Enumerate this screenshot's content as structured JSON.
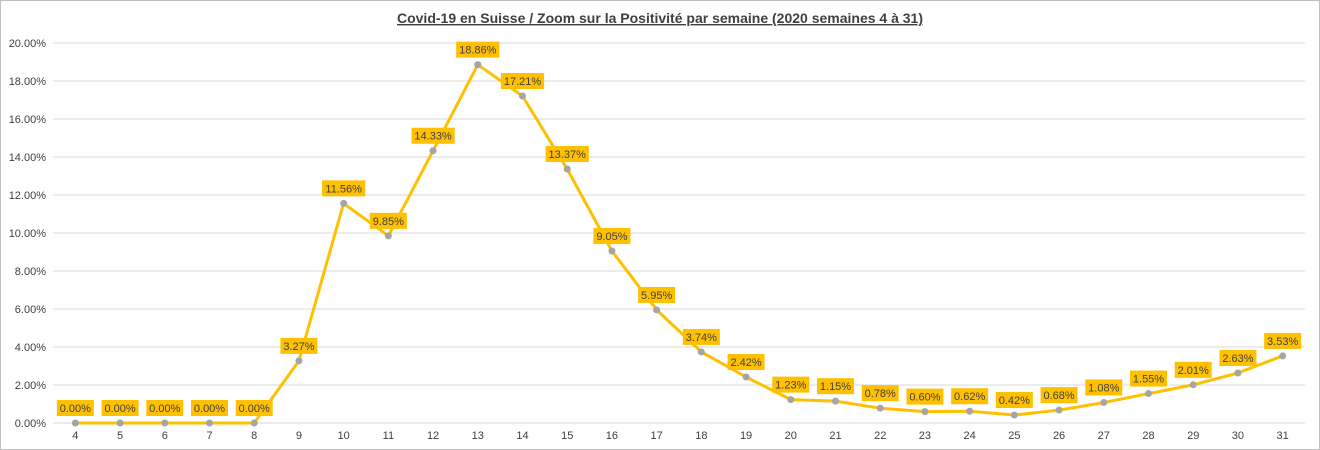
{
  "chart_data": {
    "type": "line",
    "title": "Covid-19 en Suisse / Zoom  sur la Positivité par semaine (2020 semaines 4 à 31)",
    "xlabel": "",
    "ylabel": "",
    "categories": [
      "4",
      "5",
      "6",
      "7",
      "8",
      "9",
      "10",
      "11",
      "12",
      "13",
      "14",
      "15",
      "16",
      "17",
      "18",
      "19",
      "20",
      "21",
      "22",
      "23",
      "24",
      "25",
      "26",
      "27",
      "28",
      "29",
      "30",
      "31"
    ],
    "series": [
      {
        "values": [
          0.0,
          0.0,
          0.0,
          0.0,
          0.0,
          3.27,
          11.56,
          9.85,
          14.33,
          18.86,
          17.21,
          13.37,
          9.05,
          5.95,
          3.74,
          2.42,
          1.23,
          1.15,
          0.78,
          0.6,
          0.62,
          0.42,
          0.68,
          1.08,
          1.55,
          2.01,
          2.63,
          3.53
        ],
        "data_labels": [
          "0.00%",
          "0.00%",
          "0.00%",
          "0.00%",
          "0.00%",
          "3.27%",
          "11.56%",
          "9.85%",
          "14.33%",
          "18.86%",
          "17.21%",
          "13.37%",
          "9.05%",
          "5.95%",
          "3.74%",
          "2.42%",
          "1.23%",
          "1.15%",
          "0.78%",
          "0.60%",
          "0.62%",
          "0.42%",
          "0.68%",
          "1.08%",
          "1.55%",
          "2.01%",
          "2.63%",
          "3.53%"
        ]
      }
    ],
    "ylim": [
      0,
      20
    ],
    "yticks": [
      "0.00%",
      "2.00%",
      "4.00%",
      "6.00%",
      "8.00%",
      "10.00%",
      "12.00%",
      "14.00%",
      "16.00%",
      "18.00%",
      "20.00%"
    ],
    "grid": true,
    "legend": "none",
    "colors": {
      "line": "#FFC000",
      "marker": "#A5A5A5",
      "label_bg": "#FFC000",
      "grid": "#D9D9D9"
    }
  }
}
